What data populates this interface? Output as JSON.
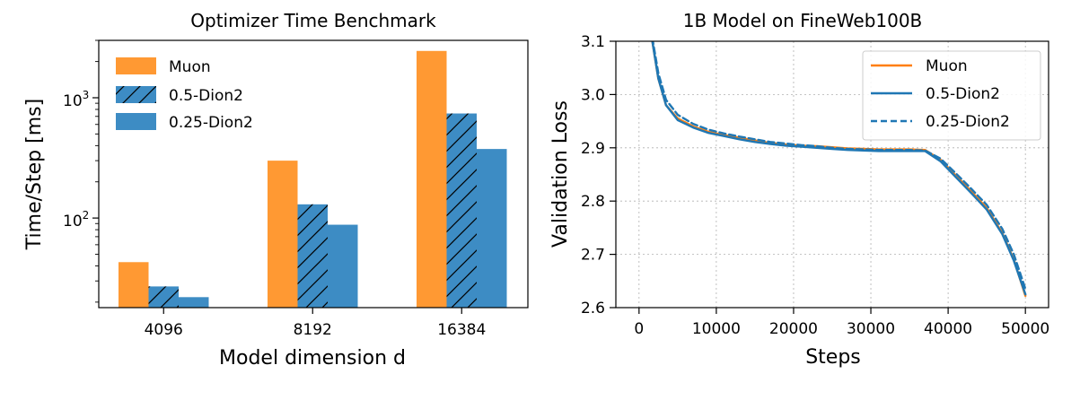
{
  "chart_data": [
    {
      "type": "bar",
      "title": "Optimizer Time Benchmark",
      "xlabel": "Model dimension d",
      "ylabel": "Time/Step [ms]",
      "yscale": "log",
      "ylim": [
        18,
        3000
      ],
      "ytick_labels": [
        {
          "base": "10",
          "exp": "2",
          "value": 100
        },
        {
          "base": "10",
          "exp": "3",
          "value": 1000
        }
      ],
      "categories": [
        "4096",
        "8192",
        "16384"
      ],
      "series": [
        {
          "name": "Muon",
          "values": [
            43,
            300,
            2450
          ],
          "color": "#ff9933",
          "hatch": false
        },
        {
          "name": "0.5-Dion2",
          "values": [
            27,
            130,
            740
          ],
          "color": "#3d8cc4",
          "hatch": true
        },
        {
          "name": "0.25-Dion2",
          "values": [
            22,
            88,
            375
          ],
          "color": "#3d8cc4",
          "hatch": false
        }
      ],
      "legend_position": "top-left"
    },
    {
      "type": "line",
      "title": "1B Model on FineWeb100B",
      "xlabel": "Steps",
      "ylabel": "Validation Loss",
      "xlim": [
        -3000,
        53000
      ],
      "ylim": [
        2.6,
        3.1
      ],
      "xticks": [
        0,
        10000,
        20000,
        30000,
        40000,
        50000
      ],
      "yticks": [
        "2.6",
        "2.7",
        "2.8",
        "2.9",
        "3.0",
        "3.1"
      ],
      "grid": true,
      "legend_position": "top-right",
      "x": [
        1500,
        2500,
        3500,
        5000,
        7000,
        9000,
        11000,
        13000,
        15000,
        17000,
        19000,
        21000,
        23000,
        25000,
        27000,
        29000,
        31000,
        33000,
        35000,
        37000,
        39000,
        41000,
        43000,
        45000,
        47000,
        48500,
        50000
      ],
      "series": [
        {
          "name": "Muon",
          "color": "#ff7f0e",
          "dash": "solid",
          "values": [
            3.12,
            3.03,
            2.98,
            2.955,
            2.94,
            2.93,
            2.924,
            2.919,
            2.914,
            2.909,
            2.906,
            2.904,
            2.903,
            2.901,
            2.899,
            2.898,
            2.897,
            2.897,
            2.897,
            2.896,
            2.878,
            2.848,
            2.818,
            2.787,
            2.74,
            2.69,
            2.622
          ]
        },
        {
          "name": "0.5-Dion2",
          "color": "#1f77b4",
          "dash": "solid",
          "values": [
            3.12,
            3.03,
            2.98,
            2.952,
            2.938,
            2.928,
            2.922,
            2.916,
            2.911,
            2.907,
            2.904,
            2.902,
            2.9,
            2.898,
            2.896,
            2.895,
            2.894,
            2.894,
            2.894,
            2.894,
            2.875,
            2.845,
            2.815,
            2.784,
            2.738,
            2.688,
            2.625
          ]
        },
        {
          "name": "0.25-Dion2",
          "color": "#1f77b4",
          "dash": "dashed",
          "values": [
            3.125,
            3.04,
            2.99,
            2.962,
            2.945,
            2.934,
            2.927,
            2.921,
            2.916,
            2.911,
            2.908,
            2.905,
            2.903,
            2.9,
            2.898,
            2.897,
            2.896,
            2.896,
            2.896,
            2.895,
            2.88,
            2.852,
            2.823,
            2.793,
            2.748,
            2.7,
            2.635
          ]
        }
      ]
    }
  ]
}
